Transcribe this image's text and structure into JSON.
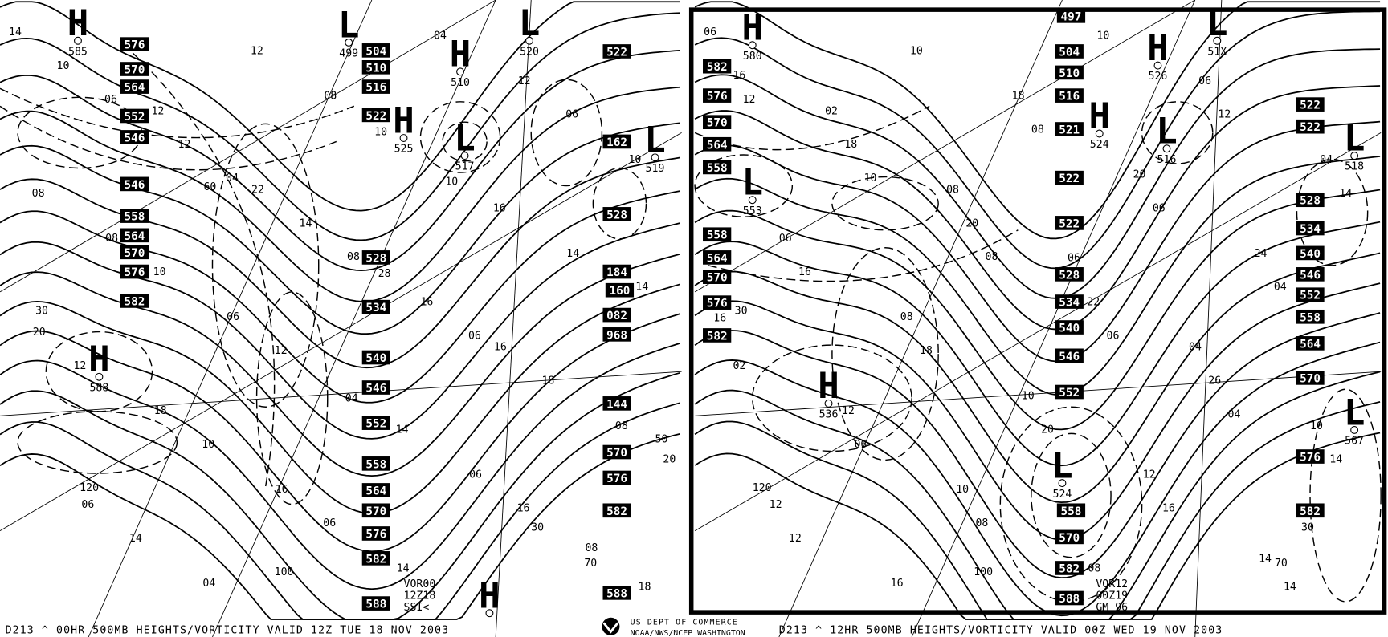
{
  "left_panel": {
    "footer": "D213 ^  00HR 500MB  HEIGHTS/VORTICITY VALID 12Z TUE 18 NOV 2003",
    "stamp": [
      "VOR00",
      "12Z18",
      "SSI<"
    ],
    "height_labels": [
      "576",
      "570",
      "564",
      "552",
      "546",
      "546",
      "558",
      "564",
      "570",
      "576",
      "582",
      "504",
      "510",
      "516",
      "522",
      "528",
      "534",
      "540",
      "546",
      "552",
      "558",
      "564",
      "570",
      "576",
      "582",
      "588",
      "522",
      "162",
      "528",
      "184",
      "160",
      "082",
      "968",
      "144",
      "570",
      "576",
      "582",
      "588"
    ],
    "centers": [
      {
        "type": "H",
        "value": "585"
      },
      {
        "type": "L",
        "value": "499"
      },
      {
        "type": "H",
        "value": "510"
      },
      {
        "type": "H",
        "value": "525"
      },
      {
        "type": "L",
        "value": "517"
      },
      {
        "type": "L",
        "value": "519"
      },
      {
        "type": "H",
        "value": "588"
      },
      {
        "type": "H",
        "value": ""
      },
      {
        "type": "L",
        "value": "520"
      }
    ],
    "vorticity_labels": [
      "14",
      "12",
      "22",
      "28",
      "16",
      "08",
      "06",
      "04",
      "08",
      "10",
      "14",
      "20",
      "18",
      "16",
      "14",
      "12",
      "10",
      "08",
      "06",
      "04",
      "06",
      "08",
      "10",
      "12",
      "14",
      "16",
      "18",
      "20",
      "14",
      "12",
      "10",
      "16",
      "14",
      "12",
      "10",
      "06",
      "04",
      "06",
      "08",
      "10",
      "12",
      "14",
      "16",
      "18",
      "06",
      "04",
      "08",
      "06"
    ],
    "contour_labels": [
      "30",
      "60",
      "120",
      "100",
      "30",
      "70",
      "50"
    ]
  },
  "right_panel": {
    "footer": "D213 ^  12HR 500MB  HEIGHTS/VORTICITY VALID 00Z WED 19 NOV 2003",
    "stamp": [
      "VOR12",
      "00Z19",
      "GM 96"
    ],
    "height_labels": [
      "582",
      "576",
      "570",
      "564",
      "558",
      "558",
      "564",
      "570",
      "576",
      "582",
      "497",
      "504",
      "510",
      "516",
      "521",
      "522",
      "522",
      "528",
      "534",
      "540",
      "546",
      "552",
      "558",
      "570",
      "582",
      "588",
      "522",
      "522",
      "528",
      "534",
      "540",
      "546",
      "552",
      "558",
      "564",
      "570",
      "576",
      "582"
    ],
    "centers": [
      {
        "type": "H",
        "value": "580"
      },
      {
        "type": "L",
        "value": "51X"
      },
      {
        "type": "H",
        "value": "526"
      },
      {
        "type": "H",
        "value": "524"
      },
      {
        "type": "L",
        "value": "516"
      },
      {
        "type": "L",
        "value": "518"
      },
      {
        "type": "L",
        "value": "553"
      },
      {
        "type": "H",
        "value": "536"
      },
      {
        "type": "L",
        "value": "524"
      },
      {
        "type": "L",
        "value": "567"
      }
    ],
    "vorticity_labels": [
      "06",
      "02",
      "08",
      "06",
      "04",
      "10",
      "12",
      "16",
      "18",
      "20",
      "24",
      "16",
      "12",
      "10",
      "08",
      "06",
      "04",
      "06",
      "08",
      "10",
      "12",
      "14",
      "16",
      "18",
      "20",
      "22",
      "26",
      "14",
      "12",
      "10",
      "08",
      "06",
      "04",
      "02",
      "06",
      "08",
      "10",
      "12",
      "14",
      "16",
      "18",
      "20",
      "16",
      "14",
      "12",
      "10",
      "08",
      "06",
      "04"
    ],
    "contour_labels": [
      "30",
      "120",
      "100",
      "30",
      "70"
    ]
  },
  "agency": {
    "line1": "US DEPT OF COMMERCE",
    "line2": "NOAA/NWS/NCEP WASHINGTON"
  },
  "colors": {
    "ink": "#000000",
    "paper": "#ffffff"
  }
}
